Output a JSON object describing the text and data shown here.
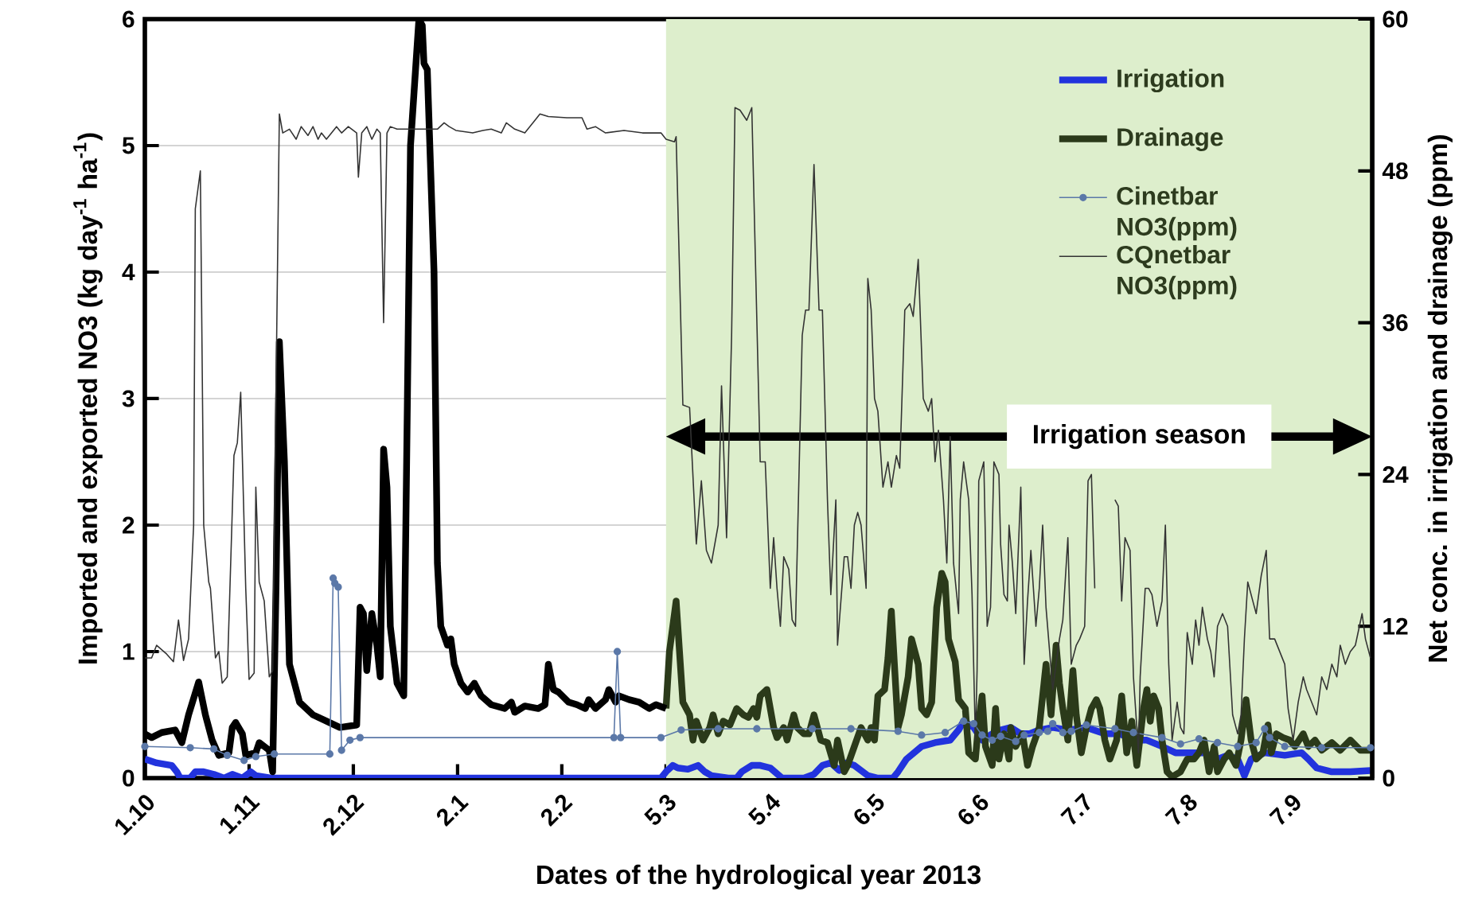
{
  "chart_data": {
    "type": "line",
    "xlabel": "Dates of the hydrological year 2013",
    "ylabel": "Imported and exported NO3   (kg day$^{-1}$ ha$^{-1}$)",
    "y2label": "Net conc. in irrigation and drainage (ppm)",
    "xlim": [
      "2012-10-01",
      "2013-10-01"
    ],
    "ylim": [
      0,
      6
    ],
    "y2lim": [
      0,
      60
    ],
    "xticks": [
      {
        "value": "2012-10-01",
        "label": "1.10"
      },
      {
        "value": "2012-11-01",
        "label": "1.11"
      },
      {
        "value": "2012-12-02",
        "label": "2.12"
      },
      {
        "value": "2013-01-02",
        "label": "2.1"
      },
      {
        "value": "2013-02-02",
        "label": "2.2"
      },
      {
        "value": "2013-03-05",
        "label": "5.3"
      },
      {
        "value": "2013-04-05",
        "label": "5.4"
      },
      {
        "value": "2013-05-06",
        "label": "6.5"
      },
      {
        "value": "2013-06-06",
        "label": "6.6"
      },
      {
        "value": "2013-07-07",
        "label": "7.7"
      },
      {
        "value": "2013-08-07",
        "label": "7.8"
      },
      {
        "value": "2013-09-07",
        "label": "7.9"
      }
    ],
    "yticks": [
      0,
      1,
      2,
      3,
      4,
      5,
      6
    ],
    "y2ticks": [
      0,
      12,
      24,
      36,
      48,
      60
    ],
    "grid": "y",
    "legend": "top right",
    "bands": [
      {
        "axis": "x",
        "from": "2013-03-05",
        "to": "2013-10-01",
        "label": "Irrigation season",
        "color": "#ddeecc"
      }
    ],
    "series": [
      {
        "name": "Irrigation",
        "color": "#2233dd",
        "axis": "y",
        "x": [
          "2012-10-01",
          "2012-10-04T12:00",
          "2012-10-09",
          "2012-10-10T12:00",
          "2012-10-11T12:00",
          "2012-10-14T12:00",
          "2012-10-16",
          "2012-10-18T12:00",
          "2012-10-21T12:00",
          "2012-10-24T12:00",
          "2012-10-27",
          "2012-10-30",
          "2012-11-01T12:00",
          "2012-11-03",
          "2012-11-07T12:00",
          "2013-03-03T12:00",
          "2013-03-05",
          "2013-03-07",
          "2013-03-08T12:00",
          "2013-03-11T12:00",
          "2013-03-14T12:00",
          "2013-03-16T12:00",
          "2013-03-18T12:00",
          "2013-03-23T12:00",
          "2013-03-26",
          "2013-03-27T12:00",
          "2013-03-30T12:00",
          "2013-04-02",
          "2013-04-05",
          "2013-04-08T12:00",
          "2013-04-15",
          "2013-04-18",
          "2013-04-20T12:00",
          "2013-04-23",
          "2013-04-25T12:00",
          "2013-04-27T12:00",
          "2013-04-30",
          "2013-05-04",
          "2013-05-07",
          "2013-05-11T12:00",
          "2013-05-13",
          "2013-05-15T12:00",
          "2013-05-20",
          "2013-05-24",
          "2013-05-28T12:00",
          "2013-05-31",
          "2013-06-01T12:00",
          "2013-06-04T12:00",
          "2013-06-07",
          "2013-06-10",
          "2013-06-12T12:00",
          "2013-06-15T12:00",
          "2013-06-18T12:00",
          "2013-06-21",
          "2013-06-24",
          "2013-06-28",
          "2013-07-02T12:00",
          "2013-07-08",
          "2013-07-13T12:00",
          "2013-07-18",
          "2013-07-22",
          "2013-07-26",
          "2013-07-30T12:00",
          "2013-08-03T12:00",
          "2013-08-08",
          "2013-08-12",
          "2013-08-16",
          "2013-08-19",
          "2013-08-22",
          "2013-08-24",
          "2013-08-26",
          "2013-08-30",
          "2013-09-05",
          "2013-09-10",
          "2013-09-12",
          "2013-09-14T12:00",
          "2013-09-19",
          "2013-09-24T12:00",
          "2013-09-30T12:00"
        ],
        "values": [
          0.15,
          0.12,
          0.1,
          0.05,
          0,
          0,
          0.05,
          0.05,
          0.03,
          0,
          0.03,
          0,
          0.05,
          0.02,
          0,
          0,
          0.05,
          0.1,
          0.08,
          0.07,
          0.1,
          0.05,
          0.02,
          0,
          0,
          0.05,
          0.1,
          0.1,
          0.08,
          0,
          0,
          0.03,
          0.1,
          0.12,
          0.06,
          0.12,
          0.1,
          0.02,
          0,
          0,
          0.05,
          0.15,
          0.25,
          0.28,
          0.3,
          0.38,
          0.45,
          0.4,
          0.3,
          0.35,
          0.38,
          0.4,
          0.35,
          0.35,
          0.38,
          0.4,
          0.38,
          0.4,
          0.35,
          0.35,
          0.3,
          0.3,
          0.25,
          0.2,
          0.2,
          0.2,
          0.15,
          0.18,
          0.15,
          0.02,
          0.15,
          0.2,
          0.18,
          0.2,
          0.15,
          0.08,
          0.05,
          0.05,
          0.06
        ]
      },
      {
        "name": "Drainage",
        "color": "#2b3a1a",
        "axis": "y",
        "x": [
          "2013-03-05",
          "2013-03-06",
          "2013-03-08",
          "2013-03-10",
          "2013-03-12",
          "2013-03-13",
          "2013-03-14",
          "2013-03-16",
          "2013-03-18",
          "2013-03-19",
          "2013-03-20T12:00",
          "2013-03-22",
          "2013-03-24",
          "2013-03-26",
          "2013-03-28",
          "2013-03-29T12:00",
          "2013-03-31",
          "2013-04-01",
          "2013-04-02",
          "2013-04-04",
          "2013-04-06",
          "2013-04-07",
          "2013-04-09",
          "2013-04-10",
          "2013-04-12",
          "2013-04-13",
          "2013-04-15",
          "2013-04-16T12:00",
          "2013-04-18",
          "2013-04-20",
          "2013-04-22",
          "2013-04-24",
          "2013-04-25",
          "2013-04-27",
          "2013-04-28",
          "2013-04-30",
          "2013-05-02",
          "2013-05-04",
          "2013-05-05",
          "2013-05-06",
          "2013-05-07",
          "2013-05-09",
          "2013-05-10",
          "2013-05-11",
          "2013-05-13",
          "2013-05-14",
          "2013-05-16",
          "2013-05-17",
          "2013-05-19",
          "2013-05-20",
          "2013-05-21T12:00",
          "2013-05-23",
          "2013-05-24T12:00",
          "2013-05-26",
          "2013-05-27",
          "2013-05-28",
          "2013-05-30",
          "2013-05-31",
          "2013-06-02",
          "2013-06-03",
          "2013-06-05",
          "2013-06-06",
          "2013-06-07",
          "2013-06-08",
          "2013-06-10",
          "2013-06-11",
          "2013-06-12",
          "2013-06-13T12:00",
          "2013-06-15",
          "2013-06-15T12:00",
          "2013-06-17",
          "2013-06-19",
          "2013-06-20T12:00",
          "2013-06-22",
          "2013-06-24",
          "2013-06-26",
          "2013-06-27T12:00",
          "2013-06-29",
          "2013-06-30",
          "2013-07-01",
          "2013-07-02T12:00",
          "2013-07-04",
          "2013-07-05",
          "2013-07-06T12:00",
          "2013-07-08",
          "2013-07-09T12:00",
          "2013-07-11",
          "2013-07-12",
          "2013-07-13T12:00",
          "2013-07-15",
          "2013-07-17",
          "2013-07-18T12:00",
          "2013-07-20",
          "2013-07-21T12:00",
          "2013-07-23",
          "2013-07-25",
          "2013-07-26",
          "2013-07-27",
          "2013-07-28",
          "2013-07-29T12:00",
          "2013-07-30T12:00",
          "2013-08-01",
          "2013-08-02T12:00",
          "2013-08-05",
          "2013-08-07",
          "2013-08-09",
          "2013-08-10T12:00",
          "2013-08-12",
          "2013-08-13T12:00",
          "2013-08-15",
          "2013-08-16",
          "2013-08-18",
          "2013-08-19T12:00",
          "2013-08-21T12:00",
          "2013-08-23",
          "2013-08-24T12:00",
          "2013-08-26",
          "2013-08-27T12:00",
          "2013-08-29T12:00",
          "2013-08-31",
          "2013-09-01",
          "2013-09-02T12:00",
          "2013-09-04T12:00",
          "2013-09-06T12:00",
          "2013-09-08",
          "2013-09-10T12:00",
          "2013-09-12",
          "2013-09-14",
          "2013-09-16",
          "2013-09-19",
          "2013-09-21T12:00",
          "2013-09-24T12:00",
          "2013-09-27T12:00",
          "2013-09-30T12:00"
        ],
        "values": [
          0.55,
          1.0,
          1.4,
          0.6,
          0.5,
          0.3,
          0.45,
          0.3,
          0.4,
          0.5,
          0.35,
          0.45,
          0.42,
          0.55,
          0.5,
          0.48,
          0.55,
          0.48,
          0.65,
          0.7,
          0.4,
          0.32,
          0.4,
          0.3,
          0.5,
          0.4,
          0.35,
          0.35,
          0.5,
          0.3,
          0.28,
          0.1,
          0.3,
          0.05,
          0.1,
          0.25,
          0.4,
          0.3,
          0.4,
          0.3,
          0.65,
          0.7,
          0.95,
          1.32,
          0.4,
          0.5,
          0.8,
          1.1,
          0.9,
          0.55,
          0.5,
          0.6,
          1.35,
          1.62,
          1.55,
          1.1,
          0.92,
          0.62,
          0.55,
          0.2,
          0.15,
          0.45,
          0.65,
          0.25,
          0.1,
          0.55,
          0.15,
          0.35,
          0.15,
          0.4,
          0.25,
          0.35,
          0.1,
          0.25,
          0.4,
          0.9,
          0.5,
          1.05,
          0.75,
          0.55,
          0.3,
          0.85,
          0.5,
          0.2,
          0.4,
          0.55,
          0.62,
          0.55,
          0.3,
          0.15,
          0.3,
          0.65,
          0.2,
          0.45,
          0.1,
          0.55,
          0.7,
          0.45,
          0.65,
          0.55,
          0.3,
          0.05,
          0.01,
          0.05,
          0.15,
          0.15,
          0.2,
          0.3,
          0.05,
          0.25,
          0.05,
          0.15,
          0.2,
          0.1,
          0.3,
          0.62,
          0.3,
          0.15,
          0.2,
          0.42,
          0.2,
          0.35,
          0.32,
          0.3,
          0.25,
          0.35,
          0.25,
          0.3,
          0.22,
          0.28,
          0.22,
          0.3,
          0.22,
          0.22
        ]
      },
      {
        "color": "#000000",
        "axis": "y",
        "x": [
          "2012-10-01",
          "2012-10-03",
          "2012-10-06",
          "2012-10-10",
          "2012-10-12",
          "2012-10-14",
          "2012-10-17",
          "2012-10-19",
          "2012-10-21",
          "2012-10-23",
          "2012-10-26",
          "2012-10-27",
          "2012-10-28",
          "2012-10-30",
          "2012-10-31",
          "2012-11-03",
          "2012-11-04",
          "2012-11-07",
          "2012-11-08",
          "2012-11-09",
          "2012-11-10",
          "2012-11-11T12:00",
          "2012-11-13",
          "2012-11-16",
          "2012-11-20",
          "2012-11-24",
          "2012-11-28",
          "2012-12-03",
          "2012-12-04",
          "2012-12-05",
          "2012-12-06",
          "2012-12-07T12:00",
          "2012-12-09",
          "2012-12-10",
          "2012-12-11",
          "2012-12-12",
          "2012-12-13",
          "2012-12-15",
          "2012-12-17",
          "2012-12-19",
          "2012-12-20",
          "2012-12-21T12:00",
          "2012-12-22T12:00",
          "2012-12-23",
          "2012-12-24",
          "2012-12-26",
          "2012-12-27",
          "2012-12-28",
          "2012-12-30",
          "2012-12-31",
          "2013-01-01",
          "2013-01-03",
          "2013-01-05",
          "2013-01-07",
          "2013-01-09",
          "2013-01-12",
          "2013-01-16",
          "2013-01-18",
          "2013-01-19",
          "2013-01-22",
          "2013-01-26",
          "2013-01-28",
          "2013-01-29",
          "2013-01-30T12:00",
          "2013-02-01",
          "2013-02-04",
          "2013-02-06T12:00",
          "2013-02-09",
          "2013-02-10",
          "2013-02-12",
          "2013-02-15",
          "2013-02-16",
          "2013-02-18",
          "2013-02-19",
          "2013-02-22",
          "2013-02-25",
          "2013-02-28",
          "2013-03-02",
          "2013-03-05"
        ],
        "values": [
          0.35,
          0.32,
          0.36,
          0.38,
          0.28,
          0.5,
          0.76,
          0.5,
          0.3,
          0.18,
          0.2,
          0.4,
          0.44,
          0.35,
          0.18,
          0.2,
          0.28,
          0.22,
          0.05,
          1.5,
          3.45,
          2.5,
          0.9,
          0.6,
          0.5,
          0.45,
          0.4,
          0.42,
          1.35,
          1.3,
          0.85,
          1.3,
          1.05,
          0.8,
          2.6,
          2.3,
          1.2,
          0.75,
          0.65,
          5.0,
          5.4,
          6.0,
          5.95,
          5.65,
          5.6,
          4.0,
          1.7,
          1.2,
          1.05,
          1.1,
          0.9,
          0.75,
          0.68,
          0.75,
          0.65,
          0.58,
          0.55,
          0.6,
          0.52,
          0.57,
          0.55,
          0.58,
          0.9,
          0.7,
          0.68,
          0.6,
          0.58,
          0.55,
          0.62,
          0.55,
          0.62,
          0.7,
          0.6,
          0.65,
          0.62,
          0.6,
          0.55,
          0.58,
          0.55
        ]
      },
      {
        "name": "Cinetbar NO3(ppm)",
        "color": "#5b78a8",
        "axis": "y2",
        "marker": "circle",
        "x": [
          "2012-10-01",
          "2012-10-14T12:00",
          "2012-10-21T12:00",
          "2012-10-25T12:00",
          "2012-10-30T12:00",
          "2012-11-03",
          "2012-11-08T12:00",
          "2012-11-25",
          "2012-11-26",
          "2012-11-26T12:00",
          "2012-11-27T12:00",
          "2012-11-28T12:00",
          "2012-12-01",
          "2012-12-04",
          "2013-02-17T12:00",
          "2013-02-18T12:00",
          "2013-02-19T12:00",
          "2013-03-03T12:00",
          "2013-03-09T12:00",
          "2013-03-20T12:00",
          "2013-04-01",
          "2013-04-17T12:00",
          "2013-04-29",
          "2013-05-13",
          "2013-05-20",
          "2013-05-27",
          "2013-06-01T12:00",
          "2013-06-04T12:00",
          "2013-06-07",
          "2013-06-10",
          "2013-06-12T12:00",
          "2013-06-17",
          "2013-06-19T12:00",
          "2013-06-24",
          "2013-06-26T12:00",
          "2013-06-28",
          "2013-07-01",
          "2013-07-03T12:00",
          "2013-07-08",
          "2013-07-16T12:00",
          "2013-07-22",
          "2013-07-30T12:00",
          "2013-08-05",
          "2013-08-10T12:00",
          "2013-08-16",
          "2013-08-22",
          "2013-08-27T12:00",
          "2013-08-30",
          "2013-08-31T12:00",
          "2013-09-05",
          "2013-09-16",
          "2013-09-30T12:00"
        ],
        "values": [
          2.5,
          2.4,
          2.3,
          1.8,
          1.4,
          1.7,
          1.9,
          1.9,
          15.8,
          15.4,
          15.1,
          2.2,
          3.0,
          3.2,
          3.2,
          10.0,
          3.2,
          3.2,
          3.8,
          3.9,
          3.9,
          3.9,
          3.9,
          3.7,
          3.4,
          3.6,
          4.5,
          4.3,
          3.4,
          3.0,
          3.3,
          2.9,
          3.4,
          3.6,
          3.7,
          4.3,
          3.6,
          3.7,
          4.2,
          3.9,
          3.6,
          3.2,
          2.7,
          3.1,
          2.8,
          2.5,
          2.8,
          3.9,
          3.2,
          2.5,
          2.4,
          2.4
        ]
      },
      {
        "name": "CQnetbar NO3(ppm)",
        "color": "#333333",
        "axis": "y2",
        "x": [
          "2012-10-01",
          "2012-10-03",
          "2012-10-04T12:00",
          "2012-10-07T12:00",
          "2012-10-09T12:00",
          "2012-10-11",
          "2012-10-12T12:00",
          "2012-10-14",
          "2012-10-15T12:00",
          "2012-10-16",
          "2012-10-17T12:00",
          "2012-10-18T12:00",
          "2012-10-20",
          "2012-10-20T12:00",
          "2012-10-22",
          "2012-10-23",
          "2012-10-24",
          "2012-10-25T12:00",
          "2012-10-27T12:00",
          "2012-10-28T12:00",
          "2012-10-29T12:00",
          "2012-10-31",
          "2012-11-01",
          "2012-11-02T12:00",
          "2012-11-03",
          "2012-11-04",
          "2012-11-05T12:00",
          "2012-11-07",
          "2012-11-08",
          "2012-11-10",
          "2012-11-11",
          "2012-11-13",
          "2012-11-15",
          "2012-11-16T12:00",
          "2012-11-18T12:00",
          "2012-11-20",
          "2012-11-21T12:00",
          "2012-11-22T12:00",
          "2012-11-24",
          "2012-11-25T12:00",
          "2012-11-27",
          "2012-11-28T12:00",
          "2012-11-30T12:00",
          "2012-12-03",
          "2012-12-03T12:00",
          "2012-12-04T12:00",
          "2012-12-06",
          "2012-12-07T12:00",
          "2012-12-09",
          "2012-12-10",
          "2012-12-11",
          "2012-12-12",
          "2012-12-13",
          "2012-12-15",
          "2012-12-21",
          "2012-12-27",
          "2012-12-29",
          "2012-12-30T12:00",
          "2013-01-01T12:00",
          "2013-01-06T12:00",
          "2013-01-09T12:00",
          "2013-01-12",
          "2013-01-15",
          "2013-01-16T12:00",
          "2013-01-19",
          "2013-01-22",
          "2013-01-25",
          "2013-01-26T12:00",
          "2013-01-29",
          "2013-02-03T12:00",
          "2013-02-08",
          "2013-02-09T12:00",
          "2013-02-12",
          "2013-02-15",
          "2013-02-20T12:00",
          "2013-02-26",
          "2013-03-03T12:00",
          "2013-03-05",
          "2013-03-07T12:00",
          "2013-03-08",
          "2013-03-10",
          "2013-03-12",
          "2013-03-14",
          "2013-03-15T12:00",
          "2013-03-17",
          "2013-03-18T12:00",
          "2013-03-20T12:00",
          "2013-03-21T12:00",
          "2013-03-23",
          "2013-03-24T12:00",
          "2013-03-25T12:00",
          "2013-03-27",
          "2013-03-29",
          "2013-03-30T12:00",
          "2013-04-02",
          "2013-04-03T12:00",
          "2013-04-05",
          "2013-04-06",
          "2013-04-07",
          "2013-04-08",
          "2013-04-09",
          "2013-04-10T12:00",
          "2013-04-11T12:00",
          "2013-04-12T12:00",
          "2013-04-14T12:00",
          "2013-04-15T12:00",
          "2013-04-16T12:00",
          "2013-04-18",
          "2013-04-19T12:00",
          "2013-04-20T12:00",
          "2013-04-22",
          "2013-04-23",
          "2013-04-24T12:00",
          "2013-04-25",
          "2013-04-27",
          "2013-04-28",
          "2013-04-29",
          "2013-04-30",
          "2013-05-01",
          "2013-05-02",
          "2013-05-03T12:00",
          "2013-05-04",
          "2013-05-05",
          "2013-05-06",
          "2013-05-07",
          "2013-05-08T12:00",
          "2013-05-10",
          "2013-05-11",
          "2013-05-12T12:00",
          "2013-05-13T12:00",
          "2013-05-15",
          "2013-05-16T12:00",
          "2013-05-17T12:00",
          "2013-05-19",
          "2013-05-20T12:00",
          "2013-05-22",
          "2013-05-23",
          "2013-05-24",
          "2013-05-25",
          "2013-05-26T12:00",
          "2013-05-27T12:00",
          "2013-05-28T12:00",
          "2013-05-29T12:00",
          "2013-05-31",
          "2013-05-31T12:00",
          "2013-06-01T12:00",
          "2013-06-03",
          "2013-06-04",
          "2013-06-05",
          "2013-06-05T12:00",
          "2013-06-06",
          "2013-06-07T12:00",
          "2013-06-08T12:00",
          "2013-06-09T12:00",
          "2013-06-10T12:00",
          "2013-06-12",
          "2013-06-12T12:00",
          "2013-06-13T12:00",
          "2013-06-14T12:00",
          "2013-06-15",
          "2013-06-16",
          "2013-06-17",
          "2013-06-18T12:00",
          "2013-06-19T12:00",
          "2013-06-20T12:00",
          "2013-06-21T12:00",
          "2013-06-23",
          "2013-06-24",
          "2013-06-25",
          "2013-06-26",
          "2013-06-28",
          "2013-06-29",
          "2013-06-30",
          "2013-07-01",
          "2013-07-02T12:00",
          "2013-07-03T12:00",
          "2013-07-05",
          "2013-07-06",
          "2013-07-07T12:00",
          "2013-07-08T12:00",
          "2013-07-09T12:00",
          "2013-07-10T12:00",
          "2013-07-12",
          "2013-07-13",
          "2013-07-14",
          "2013-07-15",
          "2013-07-16T12:00",
          "2013-07-17T12:00",
          "2013-07-18T12:00",
          "2013-07-19T12:00",
          "2013-07-21",
          "2013-07-22",
          "2013-07-23T12:00",
          "2013-07-24",
          "2013-07-25T12:00",
          "2013-07-26T12:00",
          "2013-07-27T12:00",
          "2013-07-29",
          "2013-07-30T12:00",
          "2013-07-31T12:00",
          "2013-08-01T12:00",
          "2013-08-02T12:00",
          "2013-08-04",
          "2013-08-05",
          "2013-08-06",
          "2013-08-07",
          "2013-08-08T12:00",
          "2013-08-09T12:00",
          "2013-08-10T12:00",
          "2013-08-11T12:00",
          "2013-08-13",
          "2013-08-14",
          "2013-08-15",
          "2013-08-16",
          "2013-08-17T12:00",
          "2013-08-19",
          "2013-08-20T12:00",
          "2013-08-22",
          "2013-08-23",
          "2013-08-24",
          "2013-08-25",
          "2013-08-26T12:00",
          "2013-08-27T12:00",
          "2013-08-29",
          "2013-08-30T12:00",
          "2013-08-31T12:00",
          "2013-09-02",
          "2013-09-03T12:00",
          "2013-09-05",
          "2013-09-06",
          "2013-09-07T12:00",
          "2013-09-09",
          "2013-09-10T12:00",
          "2013-09-11T12:00",
          "2013-09-13",
          "2013-09-14T12:00",
          "2013-09-16",
          "2013-09-17T12:00",
          "2013-09-19",
          "2013-09-20T12:00",
          "2013-09-21T12:00",
          "2013-09-23",
          "2013-09-24T12:00",
          "2013-09-26",
          "2013-09-28",
          "2013-09-29",
          "2013-09-30T12:00"
        ],
        "values": [
          9.5,
          9.5,
          10.5,
          9.8,
          9.2,
          12.5,
          9.3,
          11,
          20,
          45,
          48,
          20,
          15.5,
          15,
          9.5,
          10,
          7.5,
          8,
          25.5,
          26.5,
          30.5,
          15,
          7.8,
          8.3,
          23,
          15.5,
          14,
          8,
          8.5,
          52.5,
          51,
          51.3,
          50.5,
          51.5,
          50.8,
          51.5,
          50.5,
          51,
          50.5,
          51,
          51.5,
          51,
          51.5,
          51,
          47.5,
          51,
          51.5,
          50.5,
          51.3,
          51,
          36,
          51,
          51.5,
          51.3,
          51.3,
          51.3,
          51.8,
          51.5,
          51.2,
          51,
          51.2,
          51.3,
          51,
          51.8,
          51.3,
          51,
          52,
          52.5,
          52.3,
          52.2,
          52.2,
          51.3,
          51.5,
          51,
          51.2,
          51,
          51,
          50.5,
          50.3,
          50.7,
          29.5,
          29.3,
          18.5,
          23.5,
          18,
          17,
          20,
          31,
          19,
          35,
          53,
          52.8,
          52,
          53,
          25,
          25,
          15,
          19,
          15,
          12,
          17.5,
          16.5,
          12.5,
          12,
          35,
          37,
          37,
          48.5,
          37,
          37,
          22,
          14.5,
          22,
          10.5,
          17.5,
          17.5,
          15,
          20,
          21,
          20,
          15,
          39.5,
          37,
          30,
          29,
          23,
          25,
          23,
          25.5,
          24.5,
          37,
          37.5,
          36.5,
          41,
          30,
          29,
          30,
          25,
          27.5,
          22,
          17,
          27,
          17,
          13,
          22,
          25,
          22,
          14.5,
          3,
          8.5,
          23.5,
          25,
          12,
          13.5,
          25,
          24,
          18.5,
          14.5,
          14,
          20,
          17,
          13,
          23,
          9,
          14,
          18,
          12,
          15,
          20,
          13.5,
          7,
          9,
          11,
          12.5,
          19,
          9,
          10.5,
          11,
          12,
          23.5,
          24,
          15,
          null,
          null,
          null,
          null,
          22,
          21.5,
          14,
          19,
          18,
          8,
          2,
          8,
          15,
          15,
          14.5,
          12,
          14,
          20,
          9,
          3,
          6,
          4,
          3.5,
          11.5,
          9,
          12.5,
          10.5,
          13.5,
          11,
          10,
          8,
          12,
          13,
          12,
          5,
          3.5,
          5,
          11,
          15.5,
          14,
          13,
          16,
          18,
          11,
          11,
          10,
          9,
          5.5,
          3,
          6,
          8,
          7,
          6,
          5,
          8,
          7,
          9,
          8,
          10.5,
          9,
          10,
          10.5,
          13,
          11,
          9.5
        ]
      }
    ]
  }
}
